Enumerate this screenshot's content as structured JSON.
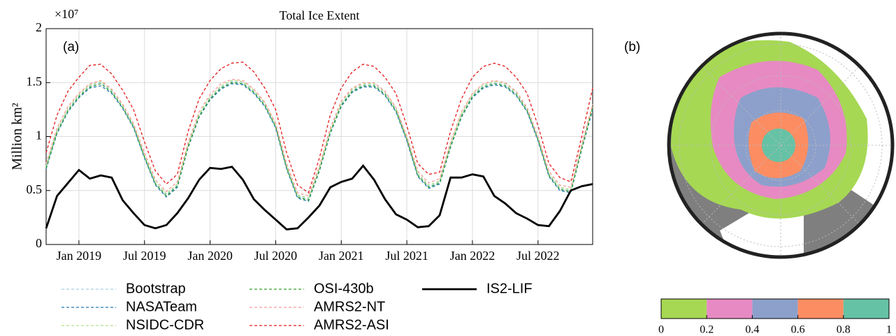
{
  "chart_data": [
    {
      "type": "line",
      "title": "Total Ice Extent",
      "annotation": "(a)",
      "y_label": "Million km²",
      "y_scale_label": "×10⁷",
      "x": [
        "2018-10",
        "2018-11",
        "2018-12",
        "2019-01",
        "2019-02",
        "2019-03",
        "2019-04",
        "2019-05",
        "2019-06",
        "2019-07",
        "2019-08",
        "2019-09",
        "2019-10",
        "2019-11",
        "2019-12",
        "2020-01",
        "2020-02",
        "2020-03",
        "2020-04",
        "2020-05",
        "2020-06",
        "2020-07",
        "2020-08",
        "2020-09",
        "2020-10",
        "2020-11",
        "2020-12",
        "2021-01",
        "2021-02",
        "2021-03",
        "2021-04",
        "2021-05",
        "2021-06",
        "2021-07",
        "2021-08",
        "2021-09",
        "2021-10",
        "2021-11",
        "2021-12",
        "2022-01",
        "2022-02",
        "2022-03",
        "2022-04",
        "2022-05",
        "2022-06",
        "2022-07",
        "2022-08",
        "2022-09",
        "2022-10",
        "2022-11",
        "2022-12"
      ],
      "xlim": [
        "2018-10",
        "2022-12"
      ],
      "xticks": [
        {
          "value": "2019-01",
          "label": "Jan 2019"
        },
        {
          "value": "2019-07",
          "label": "Jul 2019"
        },
        {
          "value": "2020-01",
          "label": "Jan 2020"
        },
        {
          "value": "2020-07",
          "label": "Jul 2020"
        },
        {
          "value": "2021-01",
          "label": "Jan 2021"
        },
        {
          "value": "2021-07",
          "label": "Jul 2021"
        },
        {
          "value": "2022-01",
          "label": "Jan 2022"
        },
        {
          "value": "2022-07",
          "label": "Jul 2022"
        }
      ],
      "ylim": [
        0,
        2
      ],
      "yticks": [
        0,
        0.5,
        1,
        1.5,
        2
      ],
      "grid": true,
      "series": [
        {
          "name": "Bootstrap",
          "color": "#a6cee3",
          "style": "dashed",
          "values": [
            0.72,
            1.05,
            1.25,
            1.38,
            1.47,
            1.5,
            1.42,
            1.28,
            1.1,
            0.82,
            0.57,
            0.46,
            0.55,
            0.92,
            1.2,
            1.36,
            1.46,
            1.51,
            1.5,
            1.42,
            1.3,
            1.1,
            0.72,
            0.45,
            0.42,
            0.7,
            1.05,
            1.3,
            1.43,
            1.48,
            1.48,
            1.4,
            1.25,
            0.98,
            0.65,
            0.54,
            0.58,
            0.92,
            1.2,
            1.38,
            1.47,
            1.5,
            1.48,
            1.4,
            1.25,
            0.98,
            0.65,
            0.52,
            0.5,
            0.9,
            1.28
          ]
        },
        {
          "name": "NASATeam",
          "color": "#1f78b4",
          "style": "dashed",
          "values": [
            0.7,
            1.03,
            1.23,
            1.36,
            1.45,
            1.47,
            1.4,
            1.26,
            1.08,
            0.8,
            0.55,
            0.44,
            0.53,
            0.9,
            1.18,
            1.34,
            1.44,
            1.49,
            1.48,
            1.4,
            1.28,
            1.08,
            0.7,
            0.43,
            0.4,
            0.68,
            1.03,
            1.28,
            1.41,
            1.46,
            1.46,
            1.38,
            1.23,
            0.96,
            0.63,
            0.52,
            0.56,
            0.9,
            1.18,
            1.36,
            1.45,
            1.48,
            1.46,
            1.38,
            1.23,
            0.96,
            0.63,
            0.5,
            0.48,
            0.88,
            1.25
          ]
        },
        {
          "name": "NSIDC-CDR",
          "color": "#b2df8a",
          "style": "dashed",
          "values": [
            0.73,
            1.06,
            1.26,
            1.39,
            1.48,
            1.51,
            1.43,
            1.29,
            1.11,
            0.83,
            0.58,
            0.47,
            0.56,
            0.93,
            1.21,
            1.37,
            1.47,
            1.52,
            1.51,
            1.43,
            1.31,
            1.11,
            0.73,
            0.46,
            0.43,
            0.71,
            1.06,
            1.31,
            1.44,
            1.49,
            1.49,
            1.41,
            1.26,
            0.99,
            0.66,
            0.55,
            0.59,
            0.93,
            1.21,
            1.39,
            1.48,
            1.51,
            1.49,
            1.41,
            1.26,
            0.99,
            0.66,
            0.53,
            0.51,
            0.91,
            1.29
          ]
        },
        {
          "name": "OSI-430b",
          "color": "#33a02c",
          "style": "dashed",
          "values": [
            0.71,
            1.04,
            1.24,
            1.37,
            1.46,
            1.49,
            1.41,
            1.27,
            1.09,
            0.81,
            0.56,
            0.45,
            0.54,
            0.91,
            1.19,
            1.35,
            1.45,
            1.5,
            1.49,
            1.41,
            1.29,
            1.09,
            0.71,
            0.44,
            0.41,
            0.69,
            1.04,
            1.29,
            1.42,
            1.47,
            1.47,
            1.39,
            1.24,
            0.97,
            0.64,
            0.53,
            0.57,
            0.91,
            1.19,
            1.37,
            1.46,
            1.49,
            1.47,
            1.39,
            1.24,
            0.97,
            0.64,
            0.51,
            0.49,
            0.89,
            1.27
          ]
        },
        {
          "name": "AMRS2-NT",
          "color": "#fb9a99",
          "style": "dashed",
          "values": [
            0.75,
            1.08,
            1.28,
            1.4,
            1.49,
            1.52,
            1.44,
            1.3,
            1.12,
            0.85,
            0.6,
            0.49,
            0.58,
            0.95,
            1.23,
            1.39,
            1.49,
            1.53,
            1.52,
            1.44,
            1.32,
            1.12,
            0.75,
            0.48,
            0.45,
            0.73,
            1.08,
            1.33,
            1.45,
            1.5,
            1.5,
            1.42,
            1.27,
            1.0,
            0.68,
            0.57,
            0.61,
            0.95,
            1.23,
            1.4,
            1.49,
            1.52,
            1.5,
            1.42,
            1.27,
            1.0,
            0.68,
            0.55,
            0.53,
            0.93,
            1.3
          ]
        },
        {
          "name": "AMRS2-ASI",
          "color": "#e31a1c",
          "style": "dashed",
          "values": [
            0.85,
            1.2,
            1.42,
            1.55,
            1.66,
            1.67,
            1.58,
            1.43,
            1.25,
            0.95,
            0.68,
            0.56,
            0.65,
            1.05,
            1.35,
            1.52,
            1.63,
            1.68,
            1.69,
            1.6,
            1.45,
            1.25,
            0.85,
            0.55,
            0.48,
            0.8,
            1.2,
            1.45,
            1.6,
            1.67,
            1.65,
            1.55,
            1.4,
            1.1,
            0.75,
            0.65,
            0.67,
            1.05,
            1.35,
            1.55,
            1.65,
            1.68,
            1.65,
            1.55,
            1.4,
            1.1,
            0.75,
            0.62,
            0.58,
            1.0,
            1.45
          ]
        },
        {
          "name": "IS2-LIF",
          "color": "#000000",
          "style": "solid",
          "values": [
            0.15,
            0.45,
            0.57,
            0.69,
            0.61,
            0.64,
            0.62,
            0.41,
            0.29,
            0.18,
            0.15,
            0.18,
            0.29,
            0.43,
            0.6,
            0.71,
            0.7,
            0.72,
            0.6,
            0.42,
            0.32,
            0.23,
            0.14,
            0.15,
            0.25,
            0.36,
            0.53,
            0.58,
            0.61,
            0.73,
            0.6,
            0.42,
            0.28,
            0.23,
            0.16,
            0.17,
            0.27,
            0.62,
            0.62,
            0.65,
            0.63,
            0.45,
            0.38,
            0.29,
            0.24,
            0.18,
            0.17,
            0.31,
            0.5,
            0.54,
            0.56
          ]
        }
      ]
    },
    {
      "type": "colorbar",
      "annotation": "(b)",
      "bins": [
        0,
        0.2,
        0.4,
        0.6,
        0.8,
        1
      ],
      "colors": [
        "#a6d854",
        "#e78ac3",
        "#8da0cb",
        "#fc8d62",
        "#66c2a5"
      ]
    }
  ]
}
